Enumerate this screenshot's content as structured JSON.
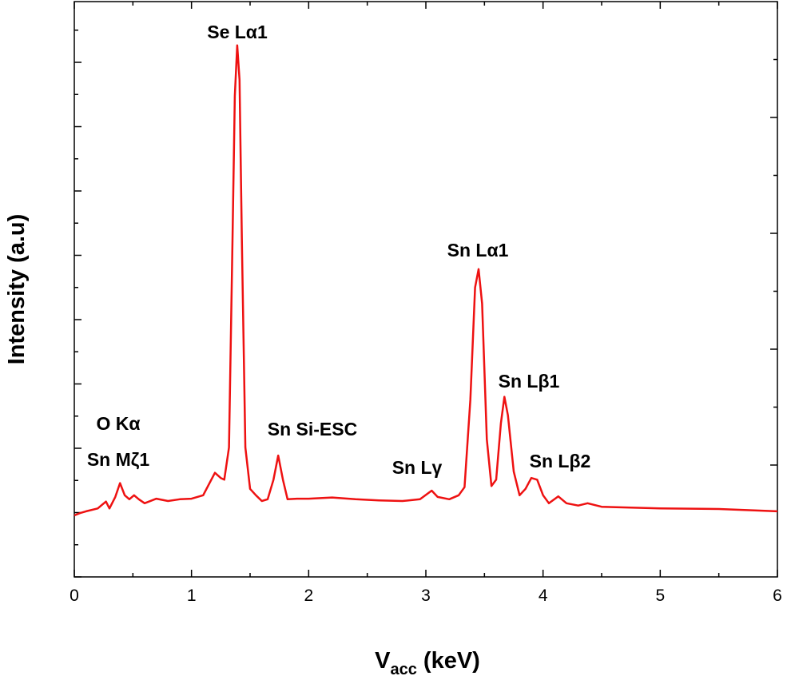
{
  "chart_data": {
    "type": "line",
    "xlabel": {
      "main": "V",
      "sub": "acc",
      "unit": " (keV)"
    },
    "ylabel": "Intensity (a.u)",
    "color": "#ee1111",
    "xlim": [
      0,
      6
    ],
    "xticks": [
      0,
      1,
      2,
      3,
      4,
      5,
      6
    ],
    "ylim": [
      0,
      100
    ],
    "annotations": [
      "Se Lα1",
      "O Kα",
      "Sn Mζ1",
      "Sn Si-ESC",
      "Sn Lγ",
      "Sn Lα1",
      "Sn Lβ1",
      "Sn Lβ2"
    ],
    "x": [
      0,
      0.05,
      0.1,
      0.2,
      0.27,
      0.3,
      0.35,
      0.39,
      0.43,
      0.47,
      0.51,
      0.55,
      0.6,
      0.7,
      0.8,
      0.9,
      1.0,
      1.1,
      1.2,
      1.25,
      1.28,
      1.32,
      1.35,
      1.37,
      1.39,
      1.41,
      1.43,
      1.46,
      1.5,
      1.55,
      1.6,
      1.65,
      1.7,
      1.74,
      1.78,
      1.82,
      1.9,
      2.0,
      2.2,
      2.4,
      2.6,
      2.8,
      2.95,
      3.05,
      3.1,
      3.2,
      3.28,
      3.33,
      3.38,
      3.42,
      3.45,
      3.48,
      3.52,
      3.56,
      3.6,
      3.64,
      3.67,
      3.7,
      3.75,
      3.8,
      3.85,
      3.9,
      3.95,
      4.0,
      4.05,
      4.13,
      4.2,
      4.3,
      4.38,
      4.5,
      5.0,
      5.5,
      6.0
    ],
    "values": [
      10.7,
      11.1,
      11.4,
      11.9,
      13.1,
      11.9,
      13.9,
      16.3,
      14.2,
      13.5,
      14.2,
      13.5,
      12.8,
      13.6,
      13.2,
      13.5,
      13.6,
      14.2,
      18.1,
      17.2,
      16.9,
      22.5,
      58.6,
      83.6,
      92.4,
      86.4,
      58.6,
      22.5,
      15.3,
      14.2,
      13.2,
      13.5,
      16.9,
      21.1,
      16.9,
      13.5,
      13.6,
      13.6,
      13.8,
      13.5,
      13.3,
      13.2,
      13.5,
      15.0,
      13.9,
      13.5,
      14.2,
      15.6,
      30.8,
      50.3,
      53.5,
      47.5,
      23.9,
      15.8,
      16.9,
      26.7,
      31.3,
      28.1,
      18.3,
      14.2,
      15.3,
      17.2,
      16.9,
      14.2,
      12.8,
      14.0,
      12.8,
      12.4,
      12.8,
      12.2,
      11.9,
      11.8,
      11.4
    ]
  }
}
